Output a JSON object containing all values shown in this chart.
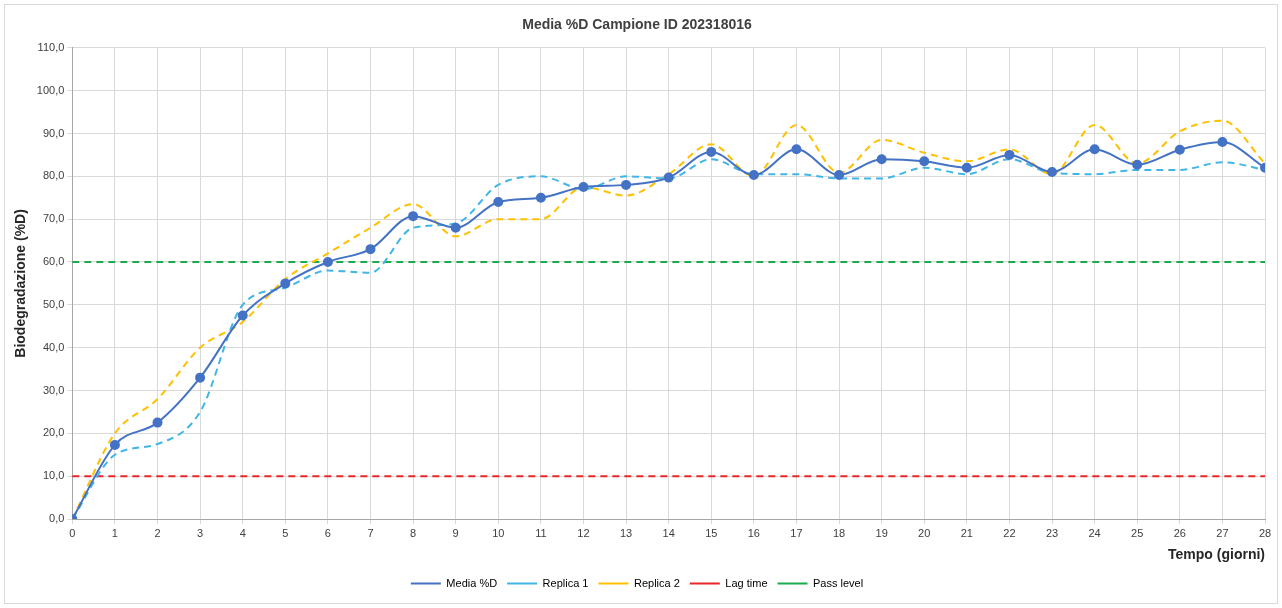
{
  "chart_data": {
    "type": "line",
    "title": "Media %D Campione ID 202318016",
    "xlabel": "Tempo (giorni)",
    "ylabel": "Biodegradazione (%D)",
    "x": [
      0,
      1,
      2,
      3,
      4,
      5,
      6,
      7,
      8,
      9,
      10,
      11,
      12,
      13,
      14,
      15,
      16,
      17,
      18,
      19,
      20,
      21,
      22,
      23,
      24,
      25,
      26,
      27,
      28
    ],
    "series": [
      {
        "name": "Media %D",
        "color": "#4472c4",
        "marker": "circle",
        "line_style": "solid",
        "values": [
          0,
          17.3,
          22.5,
          33,
          47.5,
          55,
          60,
          63,
          70.7,
          68,
          74,
          75,
          77.5,
          78,
          79.7,
          85.7,
          80.3,
          86.3,
          80.3,
          84,
          83.5,
          82,
          85,
          81,
          86.3,
          82.7,
          86.2,
          88,
          82
        ]
      },
      {
        "name": "Replica 1",
        "color": "#41b6e6",
        "marker": "none",
        "line_style": "dashed",
        "values": [
          0,
          15,
          17.5,
          25,
          50,
          54,
          58,
          57.5,
          68,
          69,
          78,
          80,
          77,
          80,
          79.5,
          84,
          80.5,
          80.5,
          79.5,
          79.5,
          82,
          80.5,
          84,
          80.8,
          80.5,
          81.5,
          81.5,
          83.3,
          81.5
        ]
      },
      {
        "name": "Replica 2",
        "color": "#ffc000",
        "marker": "none",
        "line_style": "dashed",
        "values": [
          0,
          20,
          28,
          40,
          46,
          56,
          62,
          68,
          73.5,
          66,
          70,
          70,
          77.5,
          75.5,
          80.5,
          87.5,
          80,
          92,
          80.8,
          88.5,
          85.5,
          83.5,
          86.3,
          80.5,
          92,
          83,
          90.5,
          93,
          83
        ]
      }
    ],
    "ref_lines": [
      {
        "axis": "y",
        "value": 10,
        "label": "Lag time",
        "color": "#e8262a",
        "line_style": "dashed"
      },
      {
        "axis": "y",
        "value": 60,
        "label": "Pass level",
        "color": "#1aab4f",
        "line_style": "dashed"
      }
    ],
    "xlim": [
      0,
      28
    ],
    "xticks": [
      0,
      1,
      2,
      3,
      4,
      5,
      6,
      7,
      8,
      9,
      10,
      11,
      12,
      13,
      14,
      15,
      16,
      17,
      18,
      19,
      20,
      21,
      22,
      23,
      24,
      25,
      26,
      27,
      28
    ],
    "ylim": [
      0,
      110
    ],
    "yticks": [
      {
        "value": 0,
        "label": "0,0"
      },
      {
        "value": 10,
        "label": "10,0"
      },
      {
        "value": 20,
        "label": "20,0"
      },
      {
        "value": 30,
        "label": "30,0"
      },
      {
        "value": 40,
        "label": "40,0"
      },
      {
        "value": 50,
        "label": "50,0"
      },
      {
        "value": 60,
        "label": "60,0"
      },
      {
        "value": 70,
        "label": "70,0"
      },
      {
        "value": 80,
        "label": "80,0"
      },
      {
        "value": 90,
        "label": "90,0"
      },
      {
        "value": 100,
        "label": "100,0"
      },
      {
        "value": 110,
        "label": "110,0"
      }
    ],
    "grid": true,
    "legend": "bottom"
  }
}
